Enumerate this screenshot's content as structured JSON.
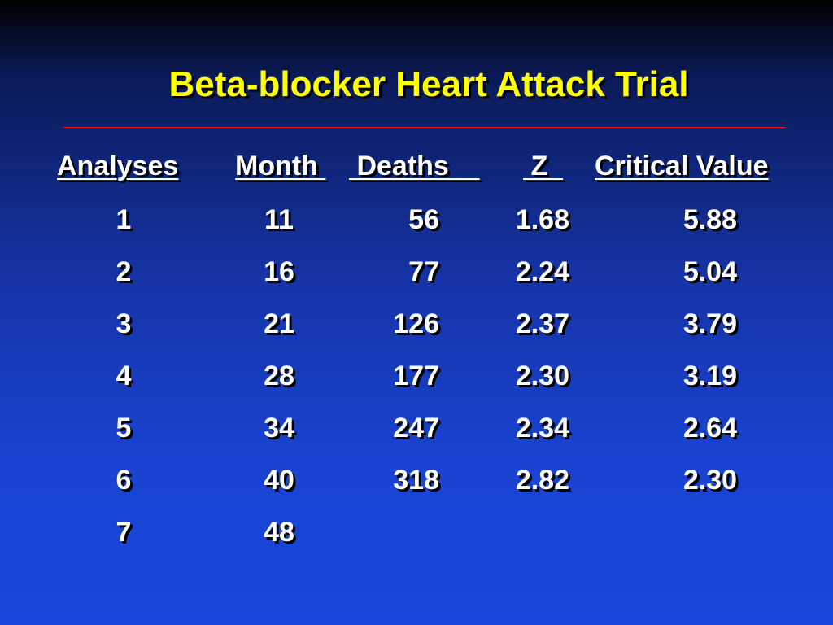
{
  "slide": {
    "title": "Beta-blocker Heart Attack Trial"
  },
  "table": {
    "headers": [
      "Analyses",
      "Month ",
      " Deaths    ",
      " Z  ",
      "Critical Value"
    ],
    "rows": [
      [
        "1",
        "11",
        "56",
        "1.68",
        "5.88"
      ],
      [
        "2",
        "16",
        "77",
        "2.24",
        "5.04"
      ],
      [
        "3",
        "21",
        "126",
        "2.37",
        "3.79"
      ],
      [
        "4",
        "28",
        "177",
        "2.30",
        "3.19"
      ],
      [
        "5",
        "34",
        "247",
        "2.34",
        "2.64"
      ],
      [
        "6",
        "40",
        "318",
        "2.82",
        "2.30"
      ],
      [
        "7",
        "48",
        "",
        "",
        ""
      ]
    ]
  },
  "colors": {
    "background_top": "#000000",
    "background_bottom": "#1a46dc",
    "title": "#ffff00",
    "text": "#ffffff",
    "rule": "#e0182b"
  }
}
